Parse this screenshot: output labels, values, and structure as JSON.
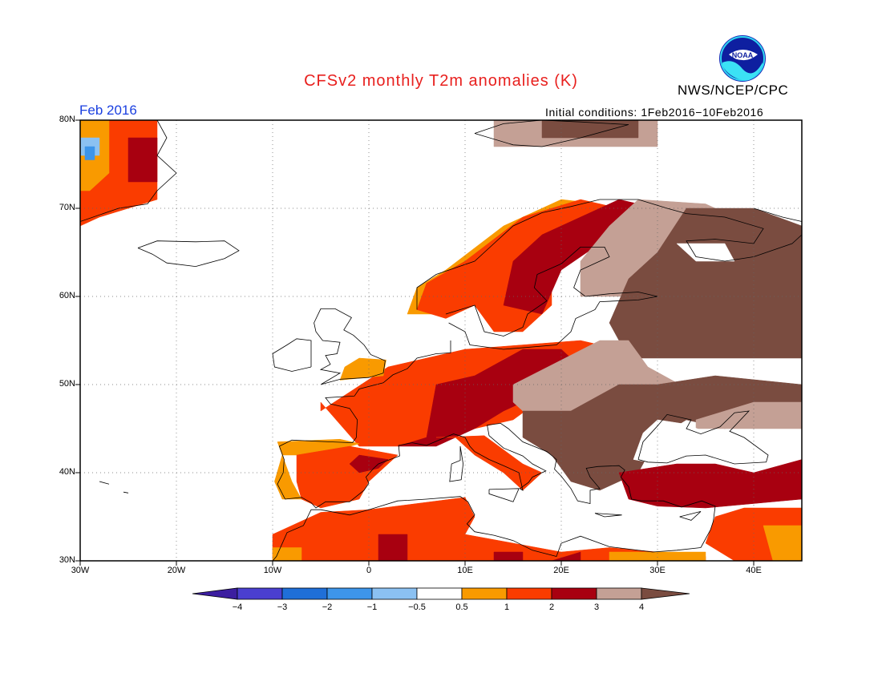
{
  "title": "CFSv2 monthly T2m anomalies (K)",
  "agency": "NWS/NCEP/CPC",
  "period": "Feb 2016",
  "initial_conditions": "Initial conditions: 1Feb2016−10Feb2016",
  "logo": {
    "text": "NOAA",
    "icon": "noaa-logo-icon"
  },
  "map": {
    "lon_range": [
      -30,
      45
    ],
    "lat_range": [
      30,
      80
    ],
    "lat_labels": [
      "80N",
      "70N",
      "60N",
      "50N",
      "40N",
      "30N"
    ],
    "lon_labels": [
      "30W",
      "20W",
      "10W",
      "0",
      "10E",
      "20E",
      "30E",
      "40E"
    ],
    "grid": "dotted"
  },
  "colorbar": {
    "labels": [
      "−4",
      "−3",
      "−2",
      "−1",
      "−0.5",
      "0.5",
      "1",
      "2",
      "3",
      "4"
    ],
    "colors": [
      "#3c1ea0",
      "#4a3fd0",
      "#1f6fd8",
      "#3d95ea",
      "#8bc1f2",
      "#ffffff",
      "#f99a00",
      "#fa3c00",
      "#a80010",
      "#c4a095",
      "#7a4c40"
    ]
  },
  "colors": {
    "c05": "#f99a00",
    "c1": "#fa3c00",
    "c2": "#a80010",
    "c3": "#c4a095",
    "c4": "#7a4c40",
    "cn05": "#8bc1f2",
    "cn1": "#3d95ea"
  }
}
